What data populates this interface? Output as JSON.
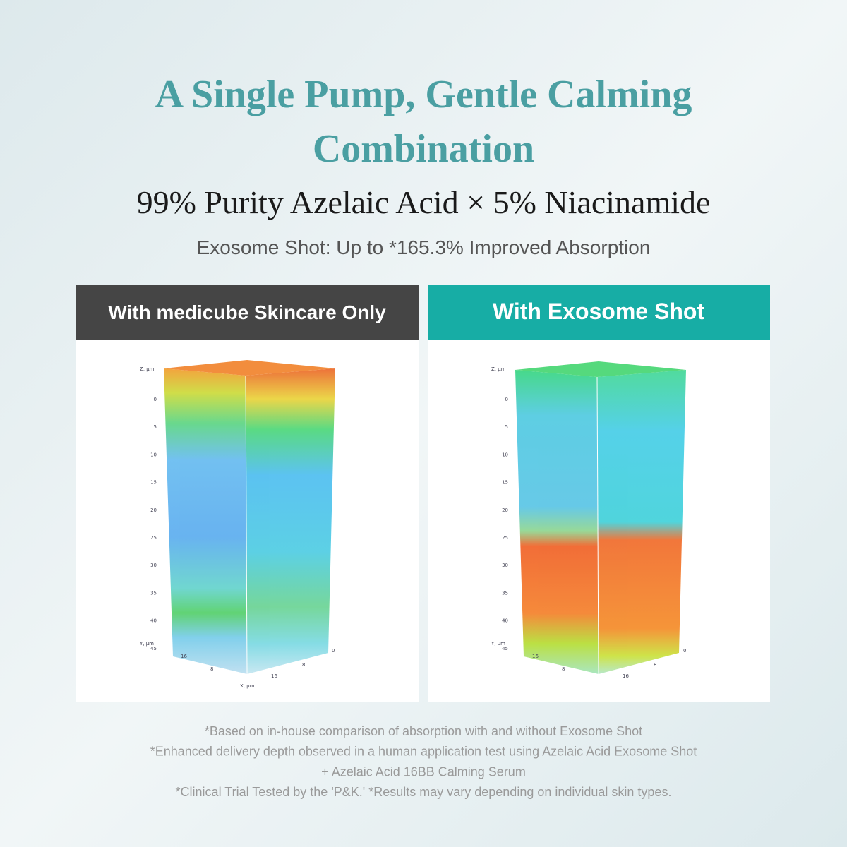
{
  "header": {
    "title_lines": [
      "A Single Pump, Gentle Calming",
      "Combination"
    ],
    "subtitle": "99% Purity Azelaic Acid × 5% Niacinamide",
    "tagline": "Exosome Shot: Up to *165.3% Improved Absorption"
  },
  "panels": [
    {
      "label": "With medicube Skincare Only",
      "z_axis_label": "Z, μm",
      "z_ticks": [
        "0",
        "5",
        "10",
        "15",
        "20",
        "25",
        "30",
        "35",
        "40",
        "45"
      ],
      "y_axis_label": "Y, μm",
      "y_ticks": [
        "16",
        "8"
      ],
      "x_ticks": [
        "0",
        "8",
        "16"
      ],
      "x_axis_label": "X, μm"
    },
    {
      "label": "With Exosome Shot",
      "z_axis_label": "Z, μm",
      "z_ticks": [
        "0",
        "5",
        "10",
        "15",
        "20",
        "25",
        "30",
        "35",
        "40",
        "45"
      ],
      "y_axis_label": "Y, μm",
      "y_ticks": [
        "16",
        "8"
      ],
      "x_ticks": [
        "0",
        "8",
        "16"
      ]
    }
  ],
  "footnotes": [
    "*Based on in-house comparison of absorption with and without Exosome Shot",
    "*Enhanced delivery depth observed in a human application test using Azelaic Acid Exosome Shot",
    "+ Azelaic Acid 16BB Calming Serum",
    "*Clinical Trial Tested by the 'P&K.' *Results may vary depending on individual skin types."
  ]
}
